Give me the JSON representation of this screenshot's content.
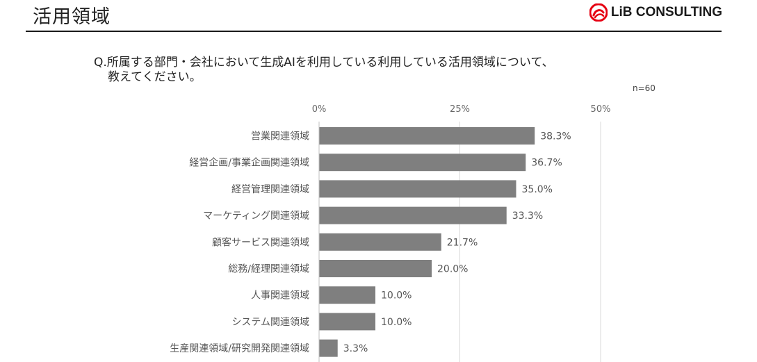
{
  "header": {
    "title": "活用領域",
    "logo_text": "LiB CONSULTING"
  },
  "question": {
    "line1": "Q.所属する部門・会社において生成AIを利用している利用している活用領域について、",
    "line2": "教えてください。"
  },
  "n_label": "n=60",
  "colors": {
    "bar": "#7f7f7f",
    "grid": "#d9d9d9",
    "logo_red": "#e60012"
  },
  "chart_data": {
    "type": "bar",
    "orientation": "horizontal",
    "categories": [
      "営業関連領域",
      "経営企画/事業企画関連領域",
      "経営管理関連領域",
      "マーケティング関連領域",
      "顧客サービス関連領域",
      "総務/経理関連領域",
      "人事関連領域",
      "システム関連領域",
      "生産関連領域/研究開発関連領域"
    ],
    "values": [
      38.3,
      36.7,
      35.0,
      33.3,
      21.7,
      20.0,
      10.0,
      10.0,
      3.3
    ],
    "value_labels": [
      "38.3%",
      "36.7%",
      "35.0%",
      "33.3%",
      "21.7%",
      "20.0%",
      "10.0%",
      "10.0%",
      "3.3%"
    ],
    "xlim": [
      0,
      50
    ],
    "ticks": [
      0,
      25,
      50
    ],
    "tick_labels": [
      "0%",
      "25%",
      "50%"
    ],
    "axis_position": "top",
    "grid": true
  }
}
